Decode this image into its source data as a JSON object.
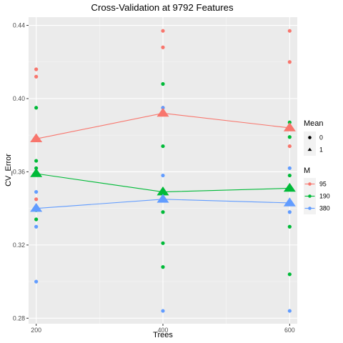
{
  "chart_data": {
    "type": "scatter",
    "title": "Cross-Validation at 9792 Features",
    "xlabel": "Trees",
    "ylabel": "CV_Error",
    "x_ticks": [
      200,
      400,
      600
    ],
    "y_ticks": [
      0.28,
      0.32,
      0.36,
      0.4,
      0.44
    ],
    "y_tick_labels": [
      "0.28",
      "0.32",
      "0.36",
      "0.40",
      "0.44"
    ],
    "x_tick_labels": [
      "200",
      "400",
      "600"
    ],
    "xlim": [
      188,
      612
    ],
    "ylim": [
      0.277,
      0.4445
    ],
    "grid": true,
    "legend": {
      "placement": "right",
      "shape_title": "Mean",
      "shape_entries": [
        {
          "label": "0",
          "shape": "circle"
        },
        {
          "label": "1",
          "shape": "triangle"
        }
      ],
      "color_title": "M",
      "color_entries": [
        {
          "label": "95",
          "color": "#F8766D"
        },
        {
          "label": "190",
          "color": "#00BA38"
        },
        {
          "label": "380",
          "color": "#619CFF"
        }
      ]
    },
    "series": [
      {
        "name": "95",
        "color": "#F8766D",
        "points": [
          {
            "x": 200,
            "y": 0.416
          },
          {
            "x": 200,
            "y": 0.412
          },
          {
            "x": 200,
            "y": 0.345
          },
          {
            "x": 400,
            "y": 0.437
          },
          {
            "x": 400,
            "y": 0.428
          },
          {
            "x": 400,
            "y": 0.395
          },
          {
            "x": 600,
            "y": 0.437
          },
          {
            "x": 600,
            "y": 0.42
          },
          {
            "x": 600,
            "y": 0.374
          }
        ],
        "mean": [
          {
            "x": 200,
            "y": 0.378
          },
          {
            "x": 400,
            "y": 0.392
          },
          {
            "x": 600,
            "y": 0.384
          }
        ]
      },
      {
        "name": "190",
        "color": "#00BA38",
        "points": [
          {
            "x": 200,
            "y": 0.395
          },
          {
            "x": 200,
            "y": 0.366
          },
          {
            "x": 200,
            "y": 0.362
          },
          {
            "x": 200,
            "y": 0.339
          },
          {
            "x": 200,
            "y": 0.334
          },
          {
            "x": 400,
            "y": 0.408
          },
          {
            "x": 400,
            "y": 0.374
          },
          {
            "x": 400,
            "y": 0.338
          },
          {
            "x": 400,
            "y": 0.321
          },
          {
            "x": 400,
            "y": 0.308
          },
          {
            "x": 600,
            "y": 0.387
          },
          {
            "x": 600,
            "y": 0.379
          },
          {
            "x": 600,
            "y": 0.358
          },
          {
            "x": 600,
            "y": 0.33
          },
          {
            "x": 600,
            "y": 0.304
          }
        ],
        "mean": [
          {
            "x": 200,
            "y": 0.359
          },
          {
            "x": 400,
            "y": 0.349
          },
          {
            "x": 600,
            "y": 0.351
          }
        ]
      },
      {
        "name": "380",
        "color": "#619CFF",
        "points": [
          {
            "x": 200,
            "y": 0.349
          },
          {
            "x": 200,
            "y": 0.33
          },
          {
            "x": 200,
            "y": 0.3
          },
          {
            "x": 400,
            "y": 0.395
          },
          {
            "x": 400,
            "y": 0.358
          },
          {
            "x": 400,
            "y": 0.284
          },
          {
            "x": 600,
            "y": 0.362
          },
          {
            "x": 600,
            "y": 0.338
          },
          {
            "x": 600,
            "y": 0.284
          }
        ],
        "mean": [
          {
            "x": 200,
            "y": 0.34
          },
          {
            "x": 400,
            "y": 0.345
          },
          {
            "x": 600,
            "y": 0.343
          }
        ]
      }
    ]
  }
}
